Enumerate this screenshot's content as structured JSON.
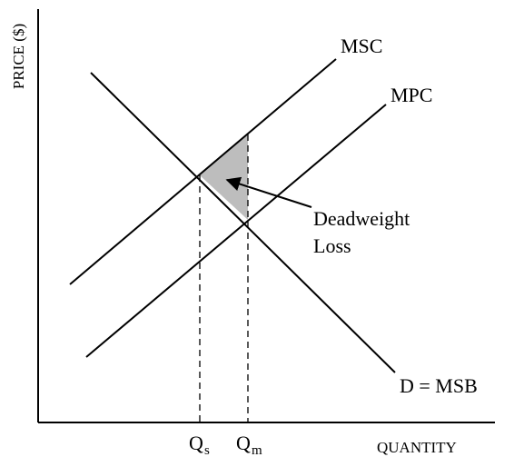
{
  "axes": {
    "y_label": "PRICE ($)",
    "x_label": "QUANTITY"
  },
  "curves": {
    "msc": "MSC",
    "mpc": "MPC",
    "demand": "D = MSB"
  },
  "annotation": {
    "line1": "Deadweight",
    "line2": "Loss"
  },
  "quantities": {
    "social": {
      "main": "Q",
      "sub": "s"
    },
    "market": {
      "main": "Q",
      "sub": "m"
    }
  }
}
